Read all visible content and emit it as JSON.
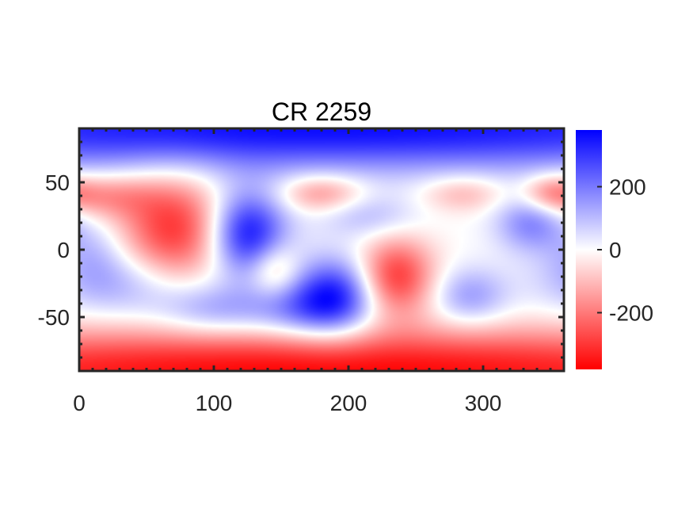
{
  "chart_data": {
    "type": "heatmap",
    "title": "CR 2259",
    "xlabel": "",
    "ylabel": "",
    "xlim": [
      0,
      360
    ],
    "ylim": [
      -90,
      90
    ],
    "x_ticks": [
      0,
      100,
      200,
      300
    ],
    "x_tick_labels": [
      "0",
      "100",
      "200",
      "300"
    ],
    "y_ticks": [
      50,
      0,
      -50
    ],
    "y_tick_labels": [
      "50",
      "0",
      "-50"
    ],
    "colorbar": {
      "range": [
        -380,
        380
      ],
      "ticks": [
        200,
        0,
        -200
      ],
      "tick_labels": [
        "200",
        "0",
        "-200"
      ],
      "colormap": [
        "#ff0000",
        "#ffffff",
        "#0000ff"
      ],
      "placement": "right"
    },
    "grid": false,
    "field_features": [
      {
        "lon": 180,
        "lat": 90,
        "value": 360,
        "width": 360,
        "height": 22
      },
      {
        "lon": 180,
        "lat": -90,
        "value": -370,
        "width": 360,
        "height": 22
      },
      {
        "lon": 70,
        "lat": 15,
        "value": -300,
        "width": 28,
        "height": 28
      },
      {
        "lon": 20,
        "lat": 40,
        "value": -150,
        "width": 25,
        "height": 12
      },
      {
        "lon": 125,
        "lat": 12,
        "value": 360,
        "width": 20,
        "height": 22
      },
      {
        "lon": 145,
        "lat": -15,
        "value": -150,
        "width": 13,
        "height": 14
      },
      {
        "lon": 180,
        "lat": 42,
        "value": -170,
        "width": 22,
        "height": 10
      },
      {
        "lon": 190,
        "lat": -35,
        "value": 330,
        "width": 22,
        "height": 20
      },
      {
        "lon": 160,
        "lat": -45,
        "value": 150,
        "width": 25,
        "height": 15
      },
      {
        "lon": 235,
        "lat": -20,
        "value": -300,
        "width": 20,
        "height": 20
      },
      {
        "lon": 215,
        "lat": 25,
        "value": 100,
        "width": 25,
        "height": 12
      },
      {
        "lon": 290,
        "lat": -35,
        "value": 150,
        "width": 20,
        "height": 15
      },
      {
        "lon": 285,
        "lat": 42,
        "value": -120,
        "width": 22,
        "height": 10
      },
      {
        "lon": 335,
        "lat": 20,
        "value": 180,
        "width": 18,
        "height": 15
      },
      {
        "lon": 350,
        "lat": 42,
        "value": -160,
        "width": 15,
        "height": 10
      },
      {
        "lon": 30,
        "lat": -25,
        "value": 130,
        "width": 35,
        "height": 18
      },
      {
        "lon": 100,
        "lat": -45,
        "value": 150,
        "width": 30,
        "height": 14
      },
      {
        "lon": 10,
        "lat": 0,
        "value": 80,
        "width": 18,
        "height": 18
      }
    ]
  }
}
